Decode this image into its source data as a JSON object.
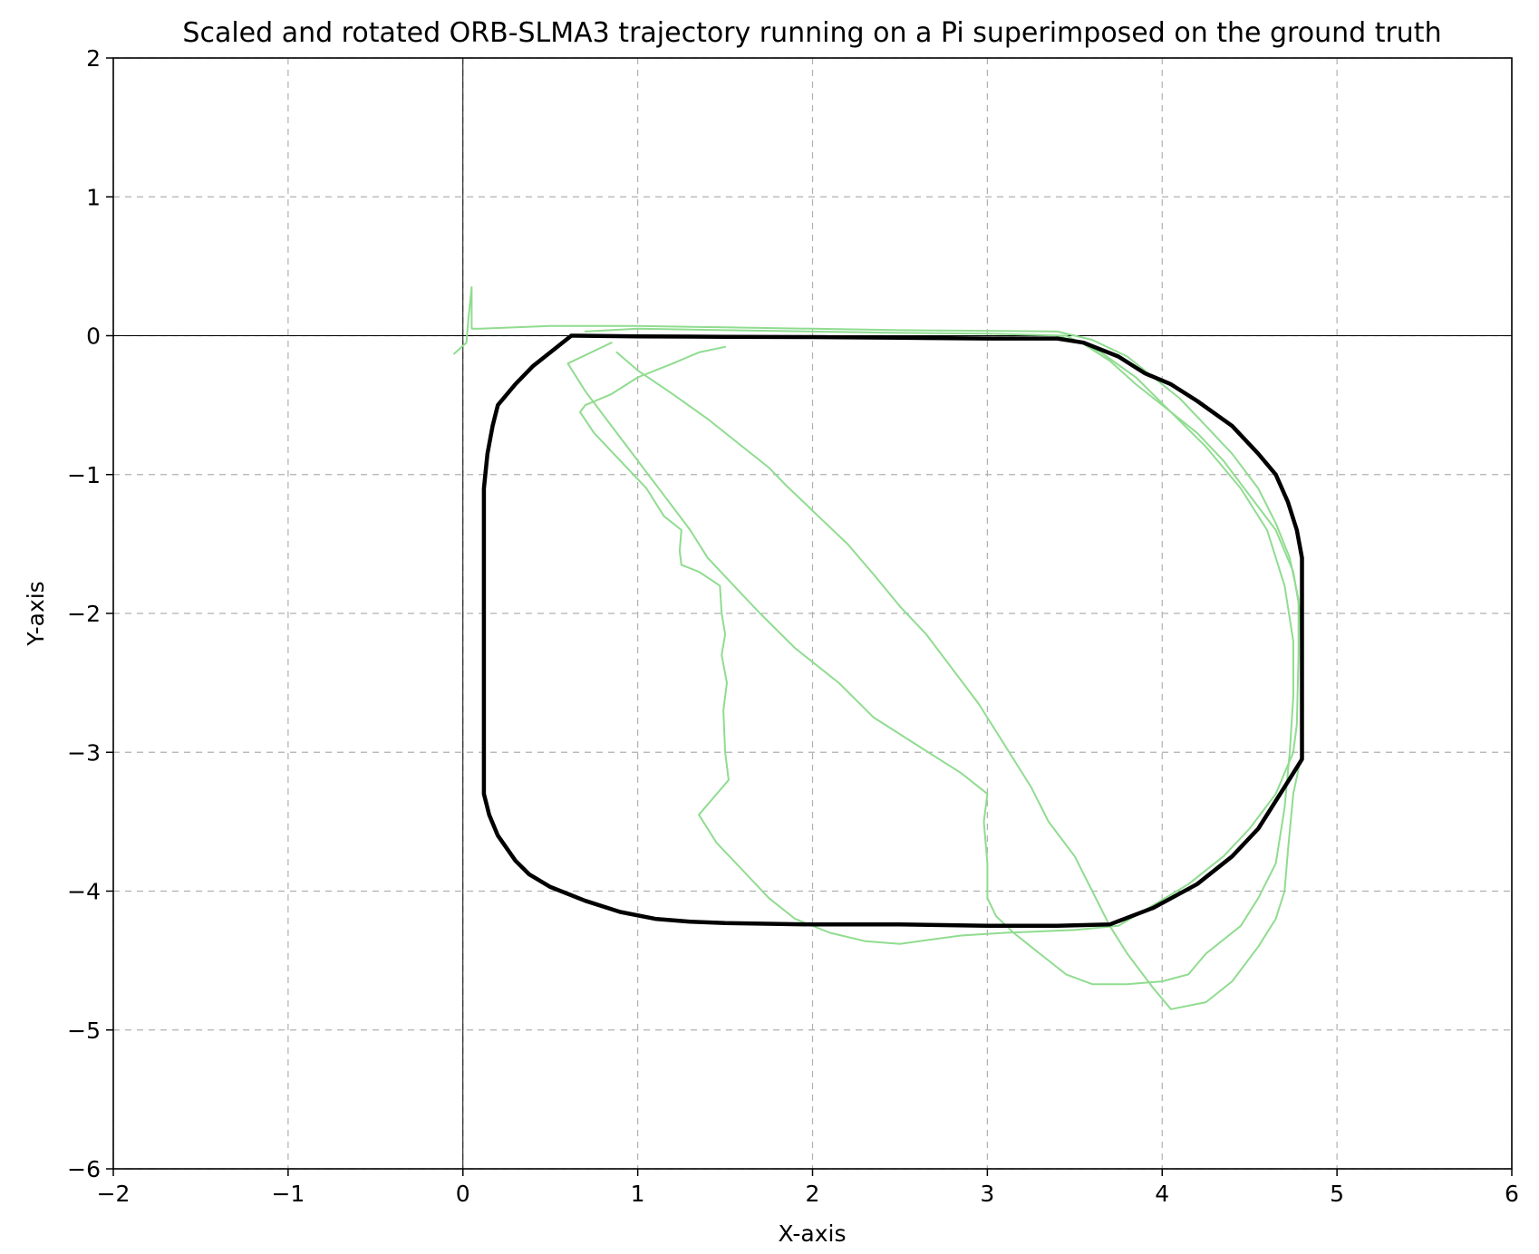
{
  "chart_data": {
    "type": "line",
    "title": "Scaled and rotated ORB-SLMA3 trajectory running on a Pi superimposed on the ground truth",
    "xlabel": "X-axis",
    "ylabel": "Y-axis",
    "xlim": [
      -2,
      6
    ],
    "ylim": [
      -6,
      2
    ],
    "xticks": [
      -2,
      -1,
      0,
      1,
      2,
      3,
      4,
      5,
      6
    ],
    "yticks": [
      2,
      1,
      0,
      -1,
      -2,
      -3,
      -4,
      -5,
      -6
    ],
    "xtick_labels": [
      "−2",
      "−1",
      "0",
      "1",
      "2",
      "3",
      "4",
      "5",
      "6"
    ],
    "ytick_labels": [
      "2",
      "1",
      "0",
      "−1",
      "−2",
      "−3",
      "−4",
      "−5",
      "−6"
    ],
    "grid": true,
    "reference_lines": {
      "x": 0,
      "y": 0
    },
    "series": [
      {
        "color": "#000000",
        "points": [
          [
            0.62,
            0.0
          ],
          [
            1.0,
            -0.005
          ],
          [
            1.5,
            -0.008
          ],
          [
            2.0,
            -0.01
          ],
          [
            2.5,
            -0.015
          ],
          [
            3.0,
            -0.02
          ],
          [
            3.4,
            -0.02
          ],
          [
            3.55,
            -0.05
          ],
          [
            3.75,
            -0.15
          ],
          [
            3.9,
            -0.27
          ],
          [
            4.05,
            -0.35
          ],
          [
            4.2,
            -0.47
          ],
          [
            4.4,
            -0.65
          ],
          [
            4.55,
            -0.85
          ],
          [
            4.65,
            -1.0
          ],
          [
            4.72,
            -1.2
          ],
          [
            4.77,
            -1.4
          ],
          [
            4.8,
            -1.6
          ],
          [
            4.8,
            -2.0
          ],
          [
            4.8,
            -2.5
          ],
          [
            4.8,
            -3.05
          ],
          [
            4.7,
            -3.25
          ],
          [
            4.55,
            -3.55
          ],
          [
            4.4,
            -3.75
          ],
          [
            4.2,
            -3.95
          ],
          [
            3.95,
            -4.12
          ],
          [
            3.7,
            -4.24
          ],
          [
            3.4,
            -4.25
          ],
          [
            3.0,
            -4.25
          ],
          [
            2.5,
            -4.24
          ],
          [
            2.0,
            -4.24
          ],
          [
            1.5,
            -4.23
          ],
          [
            1.3,
            -4.22
          ],
          [
            1.1,
            -4.2
          ],
          [
            0.9,
            -4.15
          ],
          [
            0.7,
            -4.07
          ],
          [
            0.5,
            -3.97
          ],
          [
            0.38,
            -3.88
          ],
          [
            0.3,
            -3.78
          ],
          [
            0.2,
            -3.6
          ],
          [
            0.15,
            -3.45
          ],
          [
            0.12,
            -3.3
          ],
          [
            0.12,
            -3.05
          ],
          [
            0.12,
            -2.5
          ],
          [
            0.12,
            -2.0
          ],
          [
            0.12,
            -1.5
          ],
          [
            0.12,
            -1.1
          ],
          [
            0.14,
            -0.85
          ],
          [
            0.17,
            -0.65
          ],
          [
            0.2,
            -0.5
          ],
          [
            0.3,
            -0.35
          ],
          [
            0.4,
            -0.22
          ],
          [
            0.5,
            -0.12
          ],
          [
            0.62,
            0.0
          ]
        ]
      },
      {
        "color": "#90dc90",
        "points": [
          [
            -0.05,
            -0.13
          ],
          [
            0.02,
            -0.05
          ],
          [
            0.03,
            0.1
          ],
          [
            0.05,
            0.35
          ],
          [
            0.05,
            0.05
          ],
          [
            0.1,
            0.05
          ],
          [
            0.5,
            0.07
          ],
          [
            1.0,
            0.07
          ],
          [
            1.5,
            0.06
          ],
          [
            2.0,
            0.05
          ],
          [
            2.5,
            0.04
          ],
          [
            3.0,
            0.035
          ],
          [
            3.4,
            0.03
          ],
          [
            3.6,
            -0.03
          ],
          [
            3.8,
            -0.15
          ],
          [
            3.95,
            -0.3
          ],
          [
            4.1,
            -0.45
          ],
          [
            4.25,
            -0.65
          ],
          [
            4.4,
            -0.85
          ],
          [
            4.55,
            -1.1
          ],
          [
            4.65,
            -1.35
          ],
          [
            4.73,
            -1.6
          ],
          [
            4.78,
            -1.9
          ],
          [
            4.78,
            -2.3
          ],
          [
            4.77,
            -2.8
          ],
          [
            4.75,
            -3.0
          ],
          [
            4.65,
            -3.3
          ],
          [
            4.5,
            -3.55
          ],
          [
            4.35,
            -3.75
          ],
          [
            4.15,
            -3.95
          ],
          [
            3.95,
            -4.1
          ],
          [
            3.75,
            -4.25
          ],
          [
            3.5,
            -4.28
          ],
          [
            3.1,
            -4.3
          ],
          [
            2.85,
            -4.32
          ],
          [
            2.5,
            -4.38
          ],
          [
            2.3,
            -4.36
          ],
          [
            2.1,
            -4.3
          ],
          [
            1.9,
            -4.2
          ],
          [
            1.75,
            -4.05
          ],
          [
            1.6,
            -3.85
          ],
          [
            1.45,
            -3.65
          ],
          [
            1.35,
            -3.45
          ],
          [
            1.52,
            -3.2
          ],
          [
            1.5,
            -3.0
          ],
          [
            1.49,
            -2.7
          ],
          [
            1.51,
            -2.5
          ],
          [
            1.48,
            -2.3
          ],
          [
            1.5,
            -2.15
          ],
          [
            1.48,
            -2.0
          ],
          [
            1.47,
            -1.8
          ],
          [
            1.35,
            -1.7
          ],
          [
            1.25,
            -1.65
          ],
          [
            1.24,
            -1.55
          ],
          [
            1.25,
            -1.4
          ],
          [
            1.15,
            -1.3
          ],
          [
            1.05,
            -1.1
          ],
          [
            0.9,
            -0.9
          ],
          [
            0.75,
            -0.7
          ],
          [
            0.67,
            -0.55
          ],
          [
            0.7,
            -0.5
          ],
          [
            0.85,
            -0.42
          ],
          [
            1.0,
            -0.3
          ],
          [
            1.2,
            -0.2
          ],
          [
            1.35,
            -0.12
          ],
          [
            1.5,
            -0.08
          ]
        ]
      },
      {
        "color": "#90dc90",
        "points": [
          [
            0.7,
            0.03
          ],
          [
            1.0,
            0.05
          ],
          [
            1.5,
            0.04
          ],
          [
            2.0,
            0.03
          ],
          [
            2.5,
            0.02
          ],
          [
            3.0,
            0.015
          ],
          [
            3.45,
            0.0
          ],
          [
            3.65,
            -0.12
          ],
          [
            3.85,
            -0.3
          ],
          [
            4.05,
            -0.55
          ],
          [
            4.25,
            -0.8
          ],
          [
            4.45,
            -1.1
          ],
          [
            4.6,
            -1.4
          ],
          [
            4.7,
            -1.8
          ],
          [
            4.75,
            -2.2
          ],
          [
            4.75,
            -2.6
          ],
          [
            4.73,
            -3.0
          ],
          [
            4.7,
            -3.4
          ],
          [
            4.65,
            -3.8
          ],
          [
            4.55,
            -4.05
          ],
          [
            4.45,
            -4.25
          ],
          [
            4.25,
            -4.45
          ],
          [
            4.15,
            -4.6
          ],
          [
            4.0,
            -4.65
          ],
          [
            3.8,
            -4.67
          ],
          [
            3.6,
            -4.67
          ],
          [
            3.45,
            -4.6
          ],
          [
            3.3,
            -4.45
          ],
          [
            3.15,
            -4.3
          ],
          [
            3.05,
            -4.18
          ],
          [
            3.0,
            -4.05
          ],
          [
            3.0,
            -3.8
          ],
          [
            2.98,
            -3.5
          ],
          [
            3.0,
            -3.3
          ],
          [
            2.85,
            -3.15
          ],
          [
            2.6,
            -2.95
          ],
          [
            2.35,
            -2.75
          ],
          [
            2.15,
            -2.5
          ],
          [
            1.9,
            -2.25
          ],
          [
            1.7,
            -2.0
          ],
          [
            1.55,
            -1.8
          ],
          [
            1.4,
            -1.6
          ],
          [
            1.3,
            -1.4
          ],
          [
            1.15,
            -1.15
          ],
          [
            1.0,
            -0.9
          ],
          [
            0.85,
            -0.65
          ],
          [
            0.7,
            -0.4
          ],
          [
            0.6,
            -0.2
          ],
          [
            0.85,
            -0.05
          ]
        ]
      },
      {
        "color": "#90dc90",
        "points": [
          [
            0.88,
            -0.12
          ],
          [
            1.0,
            -0.25
          ],
          [
            1.2,
            -0.42
          ],
          [
            1.4,
            -0.6
          ],
          [
            1.6,
            -0.8
          ],
          [
            1.75,
            -0.95
          ],
          [
            1.85,
            -1.08
          ],
          [
            1.95,
            -1.2
          ],
          [
            2.05,
            -1.32
          ],
          [
            2.2,
            -1.5
          ],
          [
            2.35,
            -1.72
          ],
          [
            2.5,
            -1.95
          ],
          [
            2.65,
            -2.15
          ],
          [
            2.8,
            -2.4
          ],
          [
            2.95,
            -2.65
          ],
          [
            3.1,
            -2.95
          ],
          [
            3.25,
            -3.25
          ],
          [
            3.35,
            -3.5
          ],
          [
            3.5,
            -3.75
          ],
          [
            3.6,
            -4.0
          ],
          [
            3.7,
            -4.25
          ],
          [
            3.8,
            -4.45
          ],
          [
            3.95,
            -4.7
          ],
          [
            4.05,
            -4.85
          ],
          [
            4.25,
            -4.8
          ],
          [
            4.4,
            -4.65
          ],
          [
            4.55,
            -4.4
          ],
          [
            4.65,
            -4.2
          ],
          [
            4.7,
            -4.0
          ],
          [
            4.72,
            -3.7
          ],
          [
            4.75,
            -3.3
          ],
          [
            4.8,
            -3.0
          ],
          [
            4.8,
            -2.5
          ],
          [
            4.79,
            -2.0
          ],
          [
            4.75,
            -1.7
          ],
          [
            4.65,
            -1.4
          ],
          [
            4.5,
            -1.15
          ],
          [
            4.35,
            -0.9
          ],
          [
            4.2,
            -0.7
          ],
          [
            4.0,
            -0.5
          ],
          [
            3.85,
            -0.35
          ],
          [
            3.7,
            -0.18
          ],
          [
            3.55,
            -0.06
          ],
          [
            3.4,
            0.0
          ]
        ]
      }
    ]
  }
}
